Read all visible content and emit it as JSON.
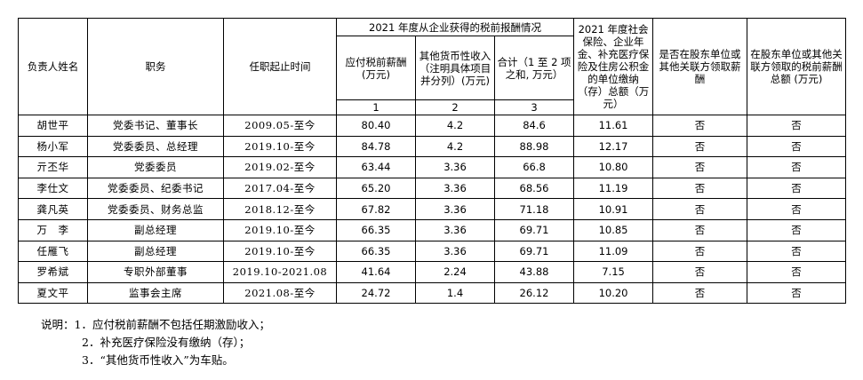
{
  "table": {
    "headers": {
      "name": "负责人姓名",
      "position": "职务",
      "term": "任职起止时间",
      "group_2021": "2021 年度从企业获得的税前报酬情况",
      "col1": "应付税前薪酬 (万元)",
      "col2": "其他货币性收入（注明具体项目并分列）(万元)",
      "col3": "合计（1 至 2 项之和, 万元）",
      "social": "2021 年度社会保险、企业年金、补充医疗保险及住房公积金的单位缴纳（存）总额（万元）",
      "paid_by_shareholder": "是否在股东单位或其他关联方领取薪酬",
      "shareholder_total": "在股东单位或其他关联方领取的税前薪酬总额 (万元)",
      "idx1": "1",
      "idx2": "2",
      "idx3": "3"
    },
    "rows": [
      {
        "name": "胡世平",
        "position": "党委书记、董事长",
        "term": "2009.05-至今",
        "salary": "80.40",
        "other": "4.2",
        "total": "84.6",
        "social": "11.61",
        "paid": "否",
        "amount": "否"
      },
      {
        "name": "杨小军",
        "position": "党委委员、总经理",
        "term": "2019.10-至今",
        "salary": "84.78",
        "other": "4.2",
        "total": "88.98",
        "social": "12.17",
        "paid": "否",
        "amount": "否"
      },
      {
        "name": "亓丕华",
        "position": "党委委员",
        "term": "2019.02-至今",
        "salary": "63.44",
        "other": "3.36",
        "total": "66.8",
        "social": "10.80",
        "paid": "否",
        "amount": "否"
      },
      {
        "name": "李仕文",
        "position": "党委委员、纪委书记",
        "term": "2017.04-至今",
        "salary": "65.20",
        "other": "3.36",
        "total": "68.56",
        "social": "11.19",
        "paid": "否",
        "amount": "否"
      },
      {
        "name": "龚凡英",
        "position": "党委委员、财务总监",
        "term": "2018.12-至今",
        "salary": "67.82",
        "other": "3.36",
        "total": "71.18",
        "social": "10.91",
        "paid": "否",
        "amount": "否"
      },
      {
        "name": "万　李",
        "position": "副总经理",
        "term": "2019.10-至今",
        "salary": "66.35",
        "other": "3.36",
        "total": "69.71",
        "social": "10.85",
        "paid": "否",
        "amount": "否"
      },
      {
        "name": "任雁飞",
        "position": "副总经理",
        "term": "2019.10-至今",
        "salary": "66.35",
        "other": "3.36",
        "total": "69.71",
        "social": "11.09",
        "paid": "否",
        "amount": "否"
      },
      {
        "name": "罗希斌",
        "position": "专职外部董事",
        "term": "2019.10-2021.08",
        "salary": "41.64",
        "other": "2.24",
        "total": "43.88",
        "social": "7.15",
        "paid": "否",
        "amount": "否"
      },
      {
        "name": "夏文平",
        "position": "监事会主席",
        "term": "2021.08-至今",
        "salary": "24.72",
        "other": "1.4",
        "total": "26.12",
        "social": "10.20",
        "paid": "否",
        "amount": "否"
      }
    ]
  },
  "notes": {
    "lead": "说明：1．应付税前薪酬不包括任期激励收入；",
    "n2": "2．补充医疗保险没有缴纳（存）；",
    "n3": "3．“其他货币性收入”为车贴。"
  }
}
